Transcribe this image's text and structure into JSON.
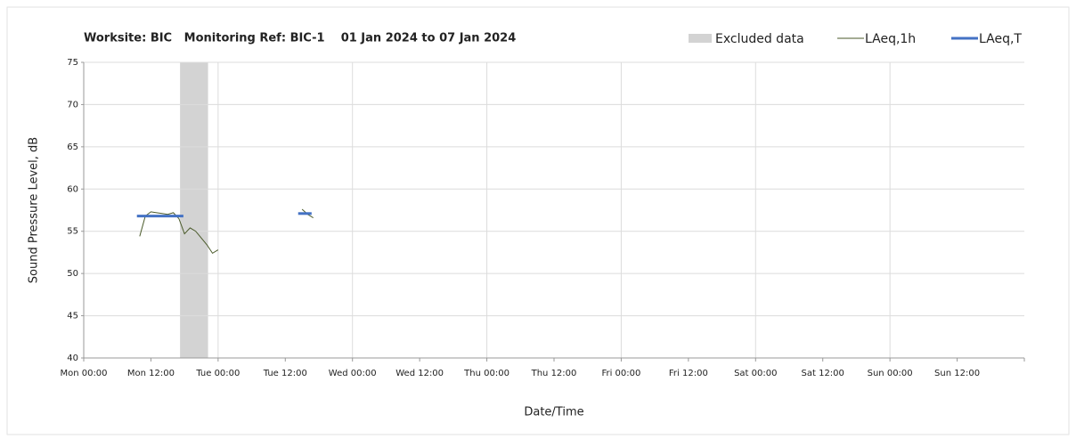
{
  "chart_data": {
    "type": "line",
    "title": "Worksite: BIC   Monitoring Ref: BIC-1    01 Jan 2024 to 07 Jan 2024",
    "ylabel": "Sound Pressure Level, dB",
    "xlabel": "Date/Time",
    "xlim": [
      0,
      168
    ],
    "ylim": [
      40,
      75
    ],
    "yticks": [
      40,
      45,
      50,
      55,
      60,
      65,
      70,
      75
    ],
    "xticks": [
      {
        "value": 0,
        "label": "Mon 00:00"
      },
      {
        "value": 12,
        "label": "Mon 12:00"
      },
      {
        "value": 24,
        "label": "Tue 00:00"
      },
      {
        "value": 36,
        "label": "Tue 12:00"
      },
      {
        "value": 48,
        "label": "Wed 00:00"
      },
      {
        "value": 60,
        "label": "Wed 12:00"
      },
      {
        "value": 72,
        "label": "Thu 00:00"
      },
      {
        "value": 84,
        "label": "Thu 12:00"
      },
      {
        "value": 96,
        "label": "Fri 00:00"
      },
      {
        "value": 108,
        "label": "Fri 12:00"
      },
      {
        "value": 120,
        "label": "Sat 00:00"
      },
      {
        "value": 132,
        "label": "Sat 12:00"
      },
      {
        "value": 144,
        "label": "Sun 00:00"
      },
      {
        "value": 156,
        "label": "Sun 12:00"
      }
    ],
    "xgrid": [
      24,
      48,
      72,
      96,
      120,
      144
    ],
    "grid": true,
    "excluded": {
      "name": "Excluded data",
      "color": "#d3d3d3",
      "x": [
        17.2,
        22.2
      ]
    },
    "series": [
      {
        "name": "LAeq,1h",
        "color": "#4a5a2a",
        "width": 1,
        "x": [
          10,
          11,
          12,
          13,
          14,
          15,
          16,
          17,
          18,
          19,
          20,
          21,
          22,
          23,
          24,
          31,
          39,
          40,
          41
        ],
        "values": [
          54.4,
          56.8,
          57.3,
          57.2,
          57.1,
          57.0,
          57.2,
          56.5,
          54.7,
          55.4,
          55.0,
          54.2,
          53.4,
          52.4,
          52.8,
          null,
          57.6,
          57.0,
          56.6
        ]
      },
      {
        "name": "LAeq,T",
        "color": "#4472c4",
        "width": 3,
        "x": [
          9.5,
          17.8,
          29,
          38.3,
          40.7
        ],
        "values": [
          56.8,
          56.8,
          null,
          57.1,
          57.1
        ]
      }
    ]
  }
}
